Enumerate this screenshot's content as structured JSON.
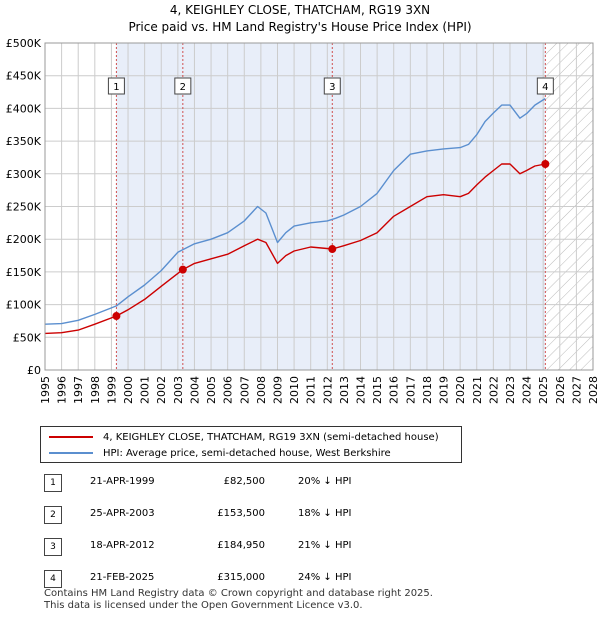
{
  "title_line1": "4, KEIGHLEY CLOSE, THATCHAM, RG19 3XN",
  "title_line2": "Price paid vs. HM Land Registry's House Price Index (HPI)",
  "colors": {
    "red": "#cc0000",
    "blue": "#5b8fcf",
    "shade": "#e8eef9",
    "grid": "#cccccc"
  },
  "chart_data": {
    "type": "line",
    "xlim": [
      1995,
      2028
    ],
    "ylim": [
      0,
      500000
    ],
    "yticks": [
      0,
      50000,
      100000,
      150000,
      200000,
      250000,
      300000,
      350000,
      400000,
      450000,
      500000
    ],
    "ytick_labels": [
      "£0",
      "£50K",
      "£100K",
      "£150K",
      "£200K",
      "£250K",
      "£300K",
      "£350K",
      "£400K",
      "£450K",
      "£500K"
    ],
    "xticks": [
      1995,
      1996,
      1997,
      1998,
      1999,
      2000,
      2001,
      2002,
      2003,
      2004,
      2005,
      2006,
      2007,
      2008,
      2009,
      2010,
      2011,
      2012,
      2013,
      2014,
      2015,
      2016,
      2017,
      2018,
      2019,
      2020,
      2021,
      2022,
      2023,
      2024,
      2025,
      2026,
      2027,
      2028
    ],
    "shaded_from": 1999.3,
    "hatched_from": 2025.13,
    "series": [
      {
        "name": "HPI: Average price, semi-detached house, West Berkshire",
        "color": "#5b8fcf",
        "points": [
          [
            1995.0,
            70000
          ],
          [
            1996.0,
            71000
          ],
          [
            1997.0,
            76000
          ],
          [
            1998.0,
            85000
          ],
          [
            1999.0,
            95000
          ],
          [
            1999.3,
            98000
          ],
          [
            2000.0,
            112000
          ],
          [
            2001.0,
            130000
          ],
          [
            2002.0,
            152000
          ],
          [
            2003.0,
            180000
          ],
          [
            2004.0,
            193000
          ],
          [
            2005.0,
            200000
          ],
          [
            2006.0,
            210000
          ],
          [
            2007.0,
            228000
          ],
          [
            2007.8,
            250000
          ],
          [
            2008.3,
            240000
          ],
          [
            2009.0,
            195000
          ],
          [
            2009.5,
            210000
          ],
          [
            2010.0,
            220000
          ],
          [
            2011.0,
            225000
          ],
          [
            2012.0,
            228000
          ],
          [
            2012.5,
            232000
          ],
          [
            2013.0,
            237000
          ],
          [
            2014.0,
            250000
          ],
          [
            2015.0,
            270000
          ],
          [
            2016.0,
            305000
          ],
          [
            2017.0,
            330000
          ],
          [
            2018.0,
            335000
          ],
          [
            2019.0,
            338000
          ],
          [
            2020.0,
            340000
          ],
          [
            2020.5,
            345000
          ],
          [
            2021.0,
            360000
          ],
          [
            2021.5,
            380000
          ],
          [
            2022.0,
            393000
          ],
          [
            2022.5,
            405000
          ],
          [
            2023.0,
            405000
          ],
          [
            2023.6,
            385000
          ],
          [
            2024.0,
            392000
          ],
          [
            2024.5,
            405000
          ],
          [
            2025.0,
            413000
          ],
          [
            2025.13,
            415000
          ]
        ]
      },
      {
        "name": "4, KEIGHLEY CLOSE, THATCHAM, RG19 3XN (semi-detached house)",
        "color": "#cc0000",
        "points": [
          [
            1995.0,
            56000
          ],
          [
            1996.0,
            57000
          ],
          [
            1997.0,
            61000
          ],
          [
            1998.0,
            70000
          ],
          [
            1999.3,
            82500
          ],
          [
            2000.0,
            92000
          ],
          [
            2001.0,
            108000
          ],
          [
            2002.0,
            128000
          ],
          [
            2003.3,
            153500
          ],
          [
            2004.0,
            163000
          ],
          [
            2005.0,
            170000
          ],
          [
            2006.0,
            177000
          ],
          [
            2007.0,
            190000
          ],
          [
            2007.8,
            200000
          ],
          [
            2008.3,
            195000
          ],
          [
            2009.0,
            163000
          ],
          [
            2009.5,
            175000
          ],
          [
            2010.0,
            182000
          ],
          [
            2011.0,
            188000
          ],
          [
            2012.3,
            184950
          ],
          [
            2013.0,
            190000
          ],
          [
            2014.0,
            198000
          ],
          [
            2015.0,
            210000
          ],
          [
            2016.0,
            235000
          ],
          [
            2017.0,
            250000
          ],
          [
            2018.0,
            265000
          ],
          [
            2019.0,
            268000
          ],
          [
            2020.0,
            265000
          ],
          [
            2020.5,
            270000
          ],
          [
            2021.0,
            283000
          ],
          [
            2021.5,
            295000
          ],
          [
            2022.0,
            305000
          ],
          [
            2022.5,
            315000
          ],
          [
            2023.0,
            315000
          ],
          [
            2023.6,
            300000
          ],
          [
            2024.0,
            305000
          ],
          [
            2024.5,
            312000
          ],
          [
            2025.13,
            315000
          ]
        ]
      }
    ],
    "sales": [
      {
        "num": "1",
        "x": 1999.3,
        "price": 82500
      },
      {
        "num": "2",
        "x": 2003.3,
        "price": 153500
      },
      {
        "num": "3",
        "x": 2012.3,
        "price": 184950
      },
      {
        "num": "4",
        "x": 2025.13,
        "price": 315000
      }
    ]
  },
  "legend": {
    "red_label": "4, KEIGHLEY CLOSE, THATCHAM, RG19 3XN (semi-detached house)",
    "blue_label": "HPI: Average price, semi-detached house, West Berkshire"
  },
  "transactions": [
    {
      "num": "1",
      "date": "21-APR-1999",
      "price": "£82,500",
      "hpi": "20% ↓ HPI"
    },
    {
      "num": "2",
      "date": "25-APR-2003",
      "price": "£153,500",
      "hpi": "18% ↓ HPI"
    },
    {
      "num": "3",
      "date": "18-APR-2012",
      "price": "£184,950",
      "hpi": "21% ↓ HPI"
    },
    {
      "num": "4",
      "date": "21-FEB-2025",
      "price": "£315,000",
      "hpi": "24% ↓ HPI"
    }
  ],
  "footer_line1": "Contains HM Land Registry data © Crown copyright and database right 2025.",
  "footer_line2": "This data is licensed under the Open Government Licence v3.0."
}
